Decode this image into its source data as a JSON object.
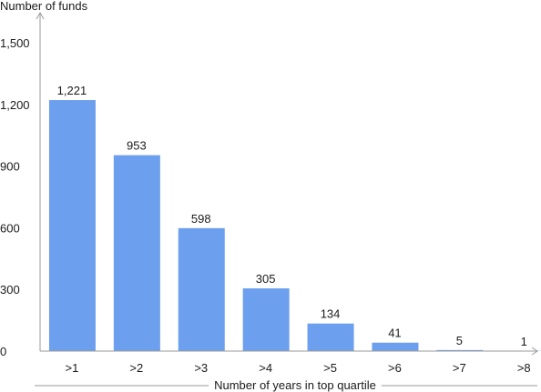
{
  "chart_data": {
    "type": "bar",
    "ylabel": "Number of funds",
    "xlabel": "Number of years in top quartile",
    "categories": [
      ">1",
      ">2",
      ">3",
      ">4",
      ">5",
      ">6",
      ">7",
      ">8"
    ],
    "values": [
      1221,
      953,
      598,
      305,
      134,
      41,
      5,
      1
    ],
    "data_labels": [
      "1,221",
      "953",
      "598",
      "305",
      "134",
      "41",
      "5",
      "1"
    ],
    "ylim": [
      0,
      1500
    ],
    "yticks": [
      0,
      300,
      600,
      900,
      1200,
      1500
    ],
    "ytick_labels": [
      "0",
      "300",
      "600",
      "900",
      "1,200",
      "1,500"
    ],
    "grid": false,
    "bar_color": "#6c9fed",
    "axis_color": "#9a9a9a"
  }
}
